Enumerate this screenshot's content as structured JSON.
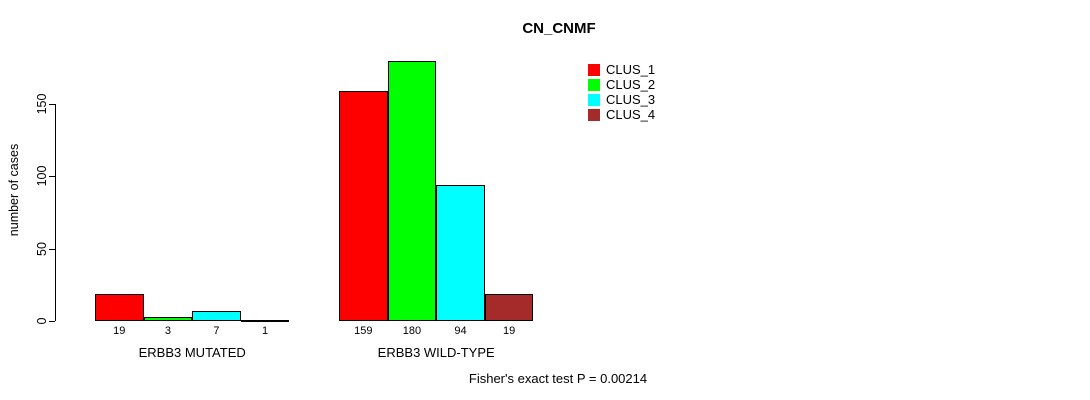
{
  "title": "CN_CNMF",
  "footer": "Fisher's exact test P = 0.00214",
  "chart_data": {
    "type": "bar",
    "title": "CN_CNMF",
    "xlabel": "",
    "ylabel": "number of cases",
    "ylim": [
      0,
      180
    ],
    "yticks": [
      0,
      50,
      100,
      150
    ],
    "grid": false,
    "legend_position": "top-right",
    "categories": [
      "ERBB3 MUTATED",
      "ERBB3 WILD-TYPE"
    ],
    "series": [
      {
        "name": "CLUS_1",
        "color": "#FF0000",
        "values": [
          19,
          159
        ]
      },
      {
        "name": "CLUS_2",
        "color": "#00FF00",
        "values": [
          3,
          180
        ]
      },
      {
        "name": "CLUS_3",
        "color": "#00FFFF",
        "values": [
          7,
          94
        ]
      },
      {
        "name": "CLUS_4",
        "color": "#A52A2A",
        "values": [
          1,
          19
        ]
      }
    ],
    "bar_labels": [
      [
        19,
        3,
        7,
        1
      ],
      [
        159,
        180,
        94,
        19
      ]
    ],
    "annotation": "Fisher's exact test P = 0.00214"
  }
}
